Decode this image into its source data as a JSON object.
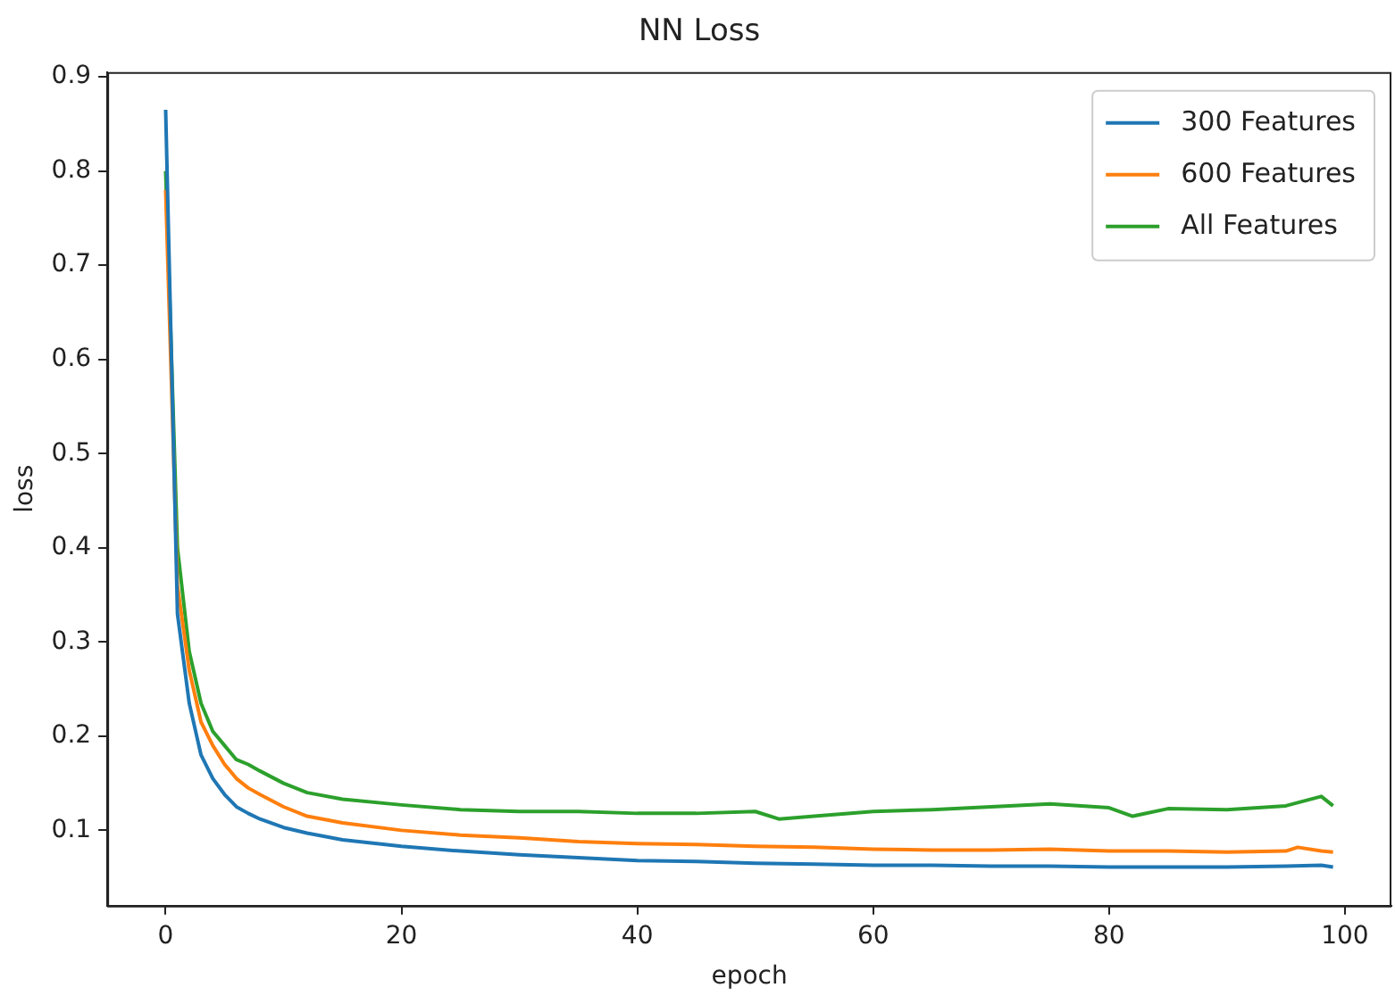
{
  "chart_data": {
    "type": "line",
    "title": "NN Loss",
    "xlabel": "epoch",
    "ylabel": "loss",
    "xlim": [
      -4.95,
      103.95
    ],
    "xticks": [
      0,
      20,
      40,
      60,
      80,
      100
    ],
    "ylim": [
      0.02,
      0.905
    ],
    "yticks": [
      0.1,
      0.2,
      0.3,
      0.4,
      0.5,
      0.6,
      0.7,
      0.8,
      0.9
    ],
    "grid": false,
    "legend": "top right",
    "marker": "none",
    "line_style": "solid",
    "series": [
      {
        "name": "300 Features",
        "color": "#1f77b4",
        "x": [
          0,
          1,
          2,
          3,
          4,
          5,
          6,
          7,
          8,
          10,
          12,
          15,
          20,
          25,
          30,
          35,
          40,
          45,
          50,
          55,
          60,
          65,
          70,
          75,
          80,
          85,
          90,
          95,
          98,
          99
        ],
        "values": [
          0.865,
          0.33,
          0.235,
          0.18,
          0.155,
          0.138,
          0.125,
          0.118,
          0.112,
          0.103,
          0.097,
          0.09,
          0.083,
          0.078,
          0.074,
          0.071,
          0.068,
          0.067,
          0.065,
          0.064,
          0.063,
          0.063,
          0.062,
          0.062,
          0.061,
          0.061,
          0.061,
          0.062,
          0.063,
          0.061
        ]
      },
      {
        "name": "600 Features",
        "color": "#ff7f0e",
        "x": [
          0,
          1,
          2,
          3,
          4,
          5,
          6,
          7,
          8,
          10,
          12,
          15,
          20,
          25,
          30,
          35,
          40,
          45,
          50,
          55,
          60,
          65,
          70,
          75,
          80,
          85,
          90,
          95,
          96,
          98,
          99
        ],
        "values": [
          0.78,
          0.36,
          0.27,
          0.215,
          0.19,
          0.17,
          0.155,
          0.145,
          0.138,
          0.125,
          0.115,
          0.108,
          0.1,
          0.095,
          0.092,
          0.088,
          0.086,
          0.085,
          0.083,
          0.082,
          0.08,
          0.079,
          0.079,
          0.08,
          0.078,
          0.078,
          0.077,
          0.078,
          0.082,
          0.078,
          0.077
        ]
      },
      {
        "name": "All Features",
        "color": "#2ca02c",
        "x": [
          0,
          1,
          2,
          3,
          4,
          5,
          6,
          7,
          8,
          10,
          12,
          15,
          20,
          25,
          30,
          35,
          40,
          45,
          50,
          52,
          55,
          60,
          65,
          70,
          75,
          80,
          82,
          85,
          90,
          95,
          98,
          99
        ],
        "values": [
          0.8,
          0.4,
          0.29,
          0.235,
          0.205,
          0.19,
          0.175,
          0.17,
          0.163,
          0.15,
          0.14,
          0.133,
          0.127,
          0.122,
          0.12,
          0.12,
          0.118,
          0.118,
          0.12,
          0.112,
          0.115,
          0.12,
          0.122,
          0.125,
          0.128,
          0.124,
          0.115,
          0.123,
          0.122,
          0.126,
          0.136,
          0.126
        ]
      }
    ]
  }
}
